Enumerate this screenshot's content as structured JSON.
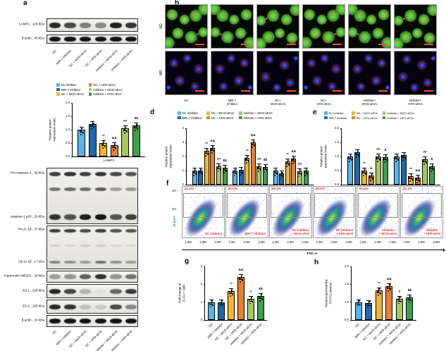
{
  "panels": {
    "a": "a",
    "b": "b",
    "c": "c",
    "d": "d",
    "e": "e",
    "f": "f",
    "g": "g",
    "h": "h"
  },
  "legend": {
    "items": [
      {
        "label": "NC inhibitor",
        "color": "#56b6e9"
      },
      {
        "label": "MiR-7 inhibitor",
        "color": "#1d69b0"
      },
      {
        "label": "NC + MCD-sEVs",
        "color": "#f7b52c"
      },
      {
        "label": "NC + HFD-sEVs",
        "color": "#e8802f"
      },
      {
        "label": "inhibitor + MCD-sEVs",
        "color": "#a6c95e"
      },
      {
        "label": "inhibitor + HFD-sEVs",
        "color": "#3da04b"
      }
    ]
  },
  "panel_a": {
    "blot_labels": [
      "LAMP1 , 120 kDa",
      "β-actin , 43 kDa"
    ],
    "lane_labels": [
      "NC",
      "MiR-7 inhibitor",
      "NC + MCD-sEVs",
      "NC + HFD-sEVs",
      "inhibitor + MCD-sEVs",
      "inhibitor + HFD-sEVs"
    ],
    "bands": {
      "lamp1": [
        0.9,
        0.75,
        0.5,
        0.45,
        0.95,
        0.85
      ],
      "actin": [
        1,
        1,
        1,
        1,
        1,
        1
      ]
    }
  },
  "panel_b": {
    "row_labels": [
      "AO",
      "MR"
    ],
    "col_labels": [
      "NC",
      "MiR-7\ninhibitor",
      "NC+\nMCD-sEVs",
      "NC+\nHFD-sEVs",
      "inhibitor+\nMCD-sEVs",
      "inhibitor+\nHFD-sEVs"
    ]
  },
  "panel_c": {
    "side_labels": [
      "Pro-caspase-1 , 45 kDa",
      "caspase-1 p20 , 20 kDa",
      "Pro-IL-1β , 37 kDa",
      "Cle-IL-1β , 17 kDa",
      "Supernate-HMGB1 , 30 kDa",
      "ZO-1 , 220 kDa",
      "ZO-2 , 160 kDa",
      "β-actin , 43 kDa"
    ],
    "lane_labels": [
      "NC",
      "MiR-7 inhibitor",
      "NC + MCD-sEVs",
      "NC + HFD-sEVs",
      "inhibitor + MCD-sEVs",
      "inhibitor + HFD-sEVs"
    ],
    "blots": [
      {
        "name": "caspase-blot",
        "rows": [
          [
            0.8,
            0.85,
            0.8,
            0.85,
            0.75,
            0.7
          ],
          [
            0.55,
            0.6,
            0.6,
            0.65,
            0.35,
            0.4
          ],
          [
            0.85,
            0.7,
            0.95,
            1,
            0.7,
            0.8
          ]
        ]
      },
      {
        "name": "il1b-blot",
        "rows": [
          [
            0.8,
            0.8,
            0.75,
            0.8,
            0.7,
            0.7
          ],
          [
            0.12,
            0.1,
            0.15,
            0.15,
            0.1,
            0.1
          ],
          [
            0.45,
            0.4,
            0.35,
            0.55,
            0.4,
            0.35
          ]
        ]
      },
      {
        "name": "hmgb1-blot",
        "rows": [
          [
            0.35,
            0.4,
            0.65,
            0.85,
            0.4,
            0.55
          ]
        ]
      },
      {
        "name": "zo1-blot",
        "rows": [
          [
            0.9,
            0.75,
            0.25,
            0.05,
            0.6,
            0.8
          ]
        ]
      },
      {
        "name": "zo2-blot",
        "rows": [
          [
            0.9,
            0.85,
            0.2,
            0.15,
            0.75,
            0.45
          ]
        ]
      },
      {
        "name": "actin-blot",
        "rows": [
          [
            1,
            1,
            1,
            1,
            1,
            1
          ]
        ]
      }
    ]
  },
  "panel_f": {
    "ylabel": "FLICA+",
    "yticks": [
      "10⁵",
      "10⁴"
    ],
    "xlabel": "FSC-A",
    "xticks": [
      "1.0M",
      "2.0M",
      "3.0M"
    ],
    "plots": [
      {
        "percent": "24.6%",
        "label": "NC inhibitor"
      },
      {
        "percent": "30.0%",
        "label": "MiR-7 inhibitor"
      },
      {
        "percent": "55.4%",
        "label": "NC inhibitor\n+ MCD-sEVs"
      },
      {
        "percent": "48.2%",
        "label": "NC inhibitor\n+ HFD-sEVs"
      },
      {
        "percent": "34.6%",
        "label": "inhibitor\n+ MCD-sEVs"
      },
      {
        "percent": "41.3%",
        "label": "inhibitor\n+ HFD-sEVs"
      }
    ]
  },
  "chart_data": [
    {
      "id": "a",
      "type": "bar",
      "ylabel": "Relative protein\nexpression levels",
      "ylim": [
        0,
        2
      ],
      "yticks": [
        "0.0",
        "0.5",
        "1.0",
        "1.5",
        "2.0"
      ],
      "legend_position": "top",
      "series_names": [
        "NC inhibitor",
        "MiR-7 inhibitor",
        "NC + MCD-sEVs",
        "NC + HFD-sEVs",
        "inhibitor + MCD-sEVs",
        "inhibitor + HFD-sEVs"
      ],
      "groups": [
        {
          "label": "LAMP1",
          "values": [
            1.0,
            1.2,
            0.5,
            0.42,
            1.05,
            1.15
          ],
          "sig": [
            "",
            "",
            "**",
            "&&",
            "##",
            "$$"
          ]
        }
      ]
    },
    {
      "id": "d",
      "type": "bar",
      "ylabel": "Relative protein\nexpression levels",
      "ylim": [
        0,
        4
      ],
      "yticks": [
        "0",
        "1",
        "2",
        "3",
        "4"
      ],
      "legend_position": "top",
      "series_names": [
        "NC inhibitor",
        "MiR-7 inhibitor",
        "NC + MCD-sEVs",
        "NC + HFD-sEVs",
        "inhibitor + MCD-sEVs",
        "inhibitor + HFD-sEVs"
      ],
      "groups": [
        {
          "label": "Caspase-1",
          "values": [
            1.0,
            1.0,
            2.4,
            2.6,
            1.3,
            1.2
          ],
          "sig": [
            "",
            "",
            "**",
            "&&",
            "##",
            "$$"
          ]
        },
        {
          "label": "IL-1β",
          "values": [
            1.0,
            1.05,
            1.9,
            3.0,
            1.3,
            1.25
          ],
          "sig": [
            "",
            "",
            "**",
            "&&",
            "##",
            "$$"
          ]
        },
        {
          "label": "HMGB1",
          "values": [
            1.0,
            0.78,
            1.65,
            1.85,
            0.95,
            1.0
          ],
          "sig": [
            "",
            "",
            "**",
            "&&",
            "##",
            ""
          ]
        }
      ]
    },
    {
      "id": "e",
      "type": "bar",
      "ylabel": "Relative protein\nexpression levels",
      "ylim": [
        0,
        2
      ],
      "yticks": [
        "0.0",
        "0.5",
        "1.0",
        "1.5",
        "2.0"
      ],
      "legend_position": "top",
      "series_names": [
        "NC inhibitor",
        "MiR-7 inhibitor",
        "NC + MCD-sEVs",
        "NC + HFD-sEVs",
        "inhibitor + MCD-sEVs",
        "inhibitor + HFD-sEVs"
      ],
      "groups": [
        {
          "label": "ZO-1",
          "values": [
            1.0,
            1.15,
            0.5,
            0.33,
            1.0,
            0.98
          ],
          "sig": [
            "",
            "",
            "**",
            "&",
            "##",
            "$"
          ]
        },
        {
          "label": "ZO-2",
          "values": [
            1.0,
            1.05,
            0.3,
            0.25,
            0.9,
            0.65
          ],
          "sig": [
            "",
            "",
            "**",
            "&&",
            "##",
            "$"
          ]
        }
      ]
    },
    {
      "id": "g",
      "type": "bar",
      "ylabel": "Fold change of\nFLICA+ cells",
      "ylim": [
        0,
        3
      ],
      "yticks": [
        "0",
        "1",
        "2",
        "3"
      ],
      "categories": [
        "NC",
        "MiR-7 inhibitor",
        "NC + MCD-sEVs",
        "NC + HFD-sEVs",
        "inhibitor + MCD-sEVs",
        "inhibitor + HFD-sEVs"
      ],
      "values": [
        1.0,
        1.0,
        1.6,
        2.4,
        1.2,
        1.35
      ],
      "sig": [
        "",
        "",
        "**",
        "&&",
        "#",
        "$$"
      ]
    },
    {
      "id": "h",
      "type": "bar",
      "ylabel": "Relative permeability\nTo FITC-dextran",
      "ylim": [
        0.5,
        2
      ],
      "yticks": [
        "0.5",
        "1.0",
        "1.5",
        "2.0"
      ],
      "categories": [
        "NC",
        "MiR-7 inhibitor",
        "NC + MCD-sEVs",
        "NC + HFD-sEVs",
        "inhibitor + MCD-sEVs",
        "inhibitor + HFD-sEVs"
      ],
      "values": [
        1.0,
        0.98,
        1.33,
        1.45,
        1.1,
        1.13
      ],
      "sig": [
        "",
        "",
        "**",
        "&&",
        "#",
        "$$"
      ]
    }
  ]
}
